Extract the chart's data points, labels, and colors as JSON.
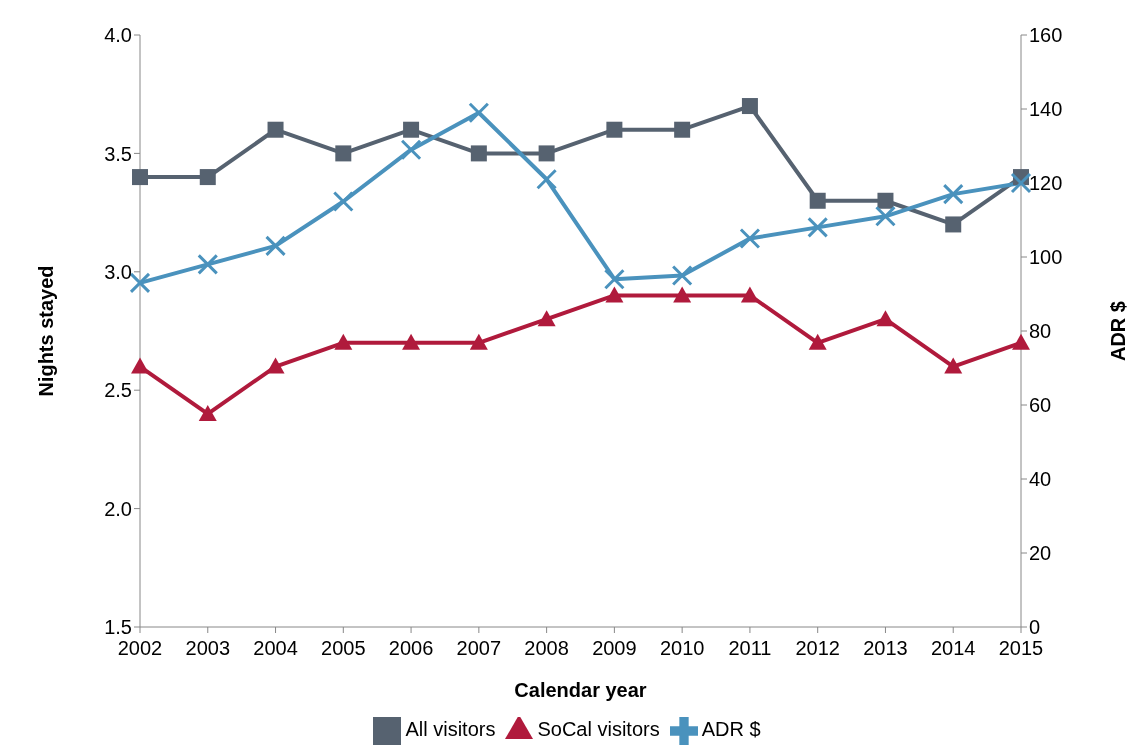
{
  "chart_data": {
    "type": "line",
    "xlabel": "Calendar year",
    "ylabel": "Nights stayed",
    "y2label": "ADR $",
    "categories": [
      "2002",
      "2003",
      "2004",
      "2005",
      "2006",
      "2007",
      "2008",
      "2009",
      "2010",
      "2011",
      "2012",
      "2013",
      "2014",
      "2015"
    ],
    "series": [
      {
        "name": "All visitors",
        "color": "#566270",
        "marker": "square",
        "values": [
          3.4,
          3.4,
          3.6,
          3.5,
          3.6,
          3.5,
          3.5,
          3.6,
          3.6,
          3.7,
          3.3,
          3.3,
          3.2,
          3.4
        ]
      },
      {
        "name": "SoCal visitors",
        "color": "#b01a3c",
        "marker": "triangle",
        "values": [
          2.6,
          2.4,
          2.6,
          2.7,
          2.7,
          2.7,
          2.8,
          2.9,
          2.9,
          2.9,
          2.7,
          2.8,
          2.6,
          2.7
        ]
      },
      {
        "name": "ADR $",
        "color": "#4a92bd",
        "marker": "cross",
        "axis": "y2",
        "values": [
          93,
          98,
          103,
          115,
          129,
          139,
          121,
          94,
          95,
          105,
          108,
          111,
          117,
          120
        ]
      }
    ],
    "ylim": [
      1.5,
      4.0
    ],
    "yticks": [
      {
        "value": 1.5,
        "label": "1.5"
      },
      {
        "value": 2,
        "label": "2.0"
      },
      {
        "value": 2.5,
        "label": "2.5"
      },
      {
        "value": 3,
        "label": "3.0"
      },
      {
        "value": 3.5,
        "label": "3.5"
      },
      {
        "value": 4,
        "label": "4.0"
      }
    ],
    "y2lim": [
      0,
      160
    ],
    "y2ticks": [
      0,
      20,
      40,
      60,
      80,
      100,
      120,
      140,
      160
    ],
    "grid": false,
    "legend": "bottom"
  }
}
